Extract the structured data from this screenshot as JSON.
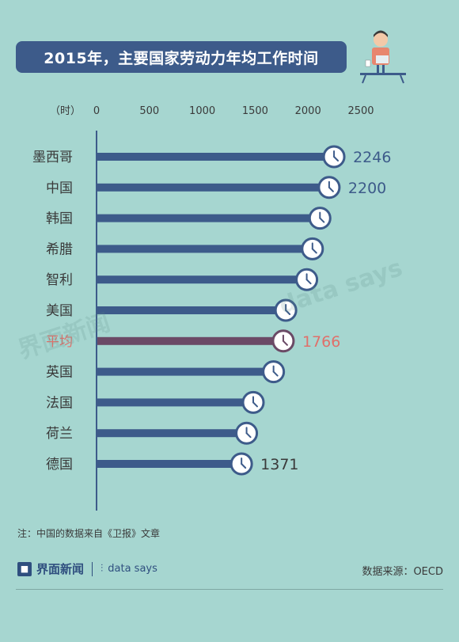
{
  "title": "2015年，主要国家劳动力年均工作时间",
  "note": "注：中国的数据来自《卫报》文章",
  "brand": {
    "logo": "界面新闻",
    "datasays": "data says"
  },
  "source": "数据来源：OECD",
  "colors": {
    "bar": "#3d5b8a",
    "highlight_bar": "#6b4a66",
    "highlight_text": "#e0706a",
    "axis": "#3d5b8a",
    "value_text": "#3d5b8a"
  },
  "icons": [
    "clock-icon",
    "worker-at-desk-illustration",
    "jiemian-logo-icon",
    "data-says-logo-icon"
  ],
  "chart_data": {
    "type": "bar",
    "orientation": "horizontal",
    "unit_label": "（时）",
    "xlim": [
      0,
      2500
    ],
    "xticks": [
      0,
      500,
      1000,
      1500,
      2000,
      2500
    ],
    "categories": [
      "墨西哥",
      "中国",
      "韩国",
      "希腊",
      "智利",
      "美国",
      "平均",
      "英国",
      "法国",
      "荷兰",
      "德国"
    ],
    "values": [
      2246,
      2200,
      2113,
      2042,
      1988,
      1790,
      1766,
      1674,
      1482,
      1419,
      1371
    ],
    "value_labels": [
      "2246",
      "2200",
      "",
      "",
      "",
      "",
      "1766",
      "",
      "",
      "",
      "1371"
    ],
    "highlight": "平均",
    "grid": false
  }
}
